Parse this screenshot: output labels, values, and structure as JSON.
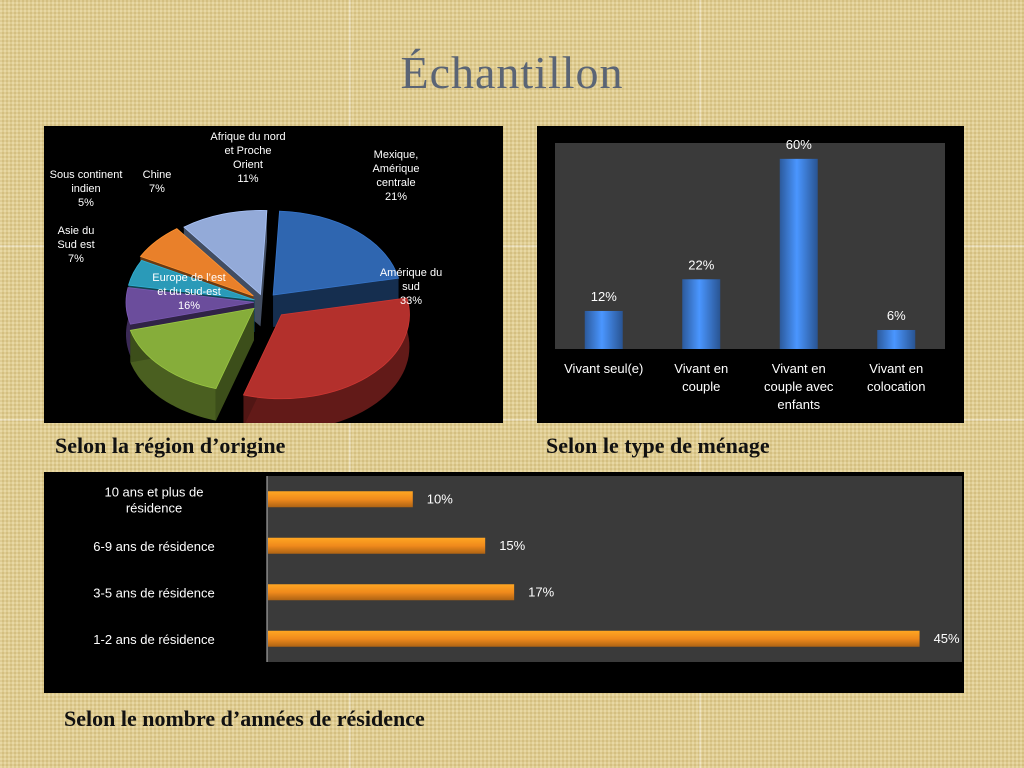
{
  "slide": {
    "title": "Échantillon"
  },
  "captions": {
    "pie": "Selon la région d’origine",
    "column": "Selon le type de ménage",
    "bar": "Selon le nombre d’années de résidence"
  },
  "chart_data": [
    {
      "type": "pie",
      "title": "",
      "legend": "none",
      "slices": [
        {
          "label_lines": [
            "Mexique,",
            "Amérique",
            "centrale"
          ],
          "value_label": "21%",
          "value": 21,
          "color": "#2f66b0"
        },
        {
          "label_lines": [
            "Amérique du",
            "sud"
          ],
          "value_label": "33%",
          "value": 33,
          "color": "#b3302c"
        },
        {
          "label_lines": [
            "Europe de l’est",
            "et du sud-est"
          ],
          "value_label": "16%",
          "value": 16,
          "color": "#86ad3a"
        },
        {
          "label_lines": [
            "Asie du",
            "Sud est"
          ],
          "value_label": "7%",
          "value": 7,
          "color": "#6b4d9c"
        },
        {
          "label_lines": [
            "Sous continent",
            "indien"
          ],
          "value_label": "5%",
          "value": 5,
          "color": "#2a9ab8"
        },
        {
          "label_lines": [
            "Chine"
          ],
          "value_label": "7%",
          "value": 7,
          "color": "#e9802a"
        },
        {
          "label_lines": [
            "Afrique du nord",
            "et Proche",
            "Orient"
          ],
          "value_label": "11%",
          "value": 11,
          "color": "#93aad8"
        }
      ]
    },
    {
      "type": "bar",
      "orientation": "vertical",
      "title": "",
      "categories": [
        {
          "lines": [
            "Vivant seul(e)"
          ]
        },
        {
          "lines": [
            "Vivant en",
            "couple"
          ]
        },
        {
          "lines": [
            "Vivant en",
            "couple avec",
            "enfants"
          ]
        },
        {
          "lines": [
            "Vivant en",
            "colocation"
          ]
        }
      ],
      "values": [
        12,
        22,
        60,
        6
      ],
      "value_labels": [
        "12%",
        "22%",
        "60%",
        "6%"
      ],
      "ylim": [
        0,
        65
      ],
      "color": "#3b78d0",
      "plot_background": "#3a3a3a"
    },
    {
      "type": "bar",
      "orientation": "horizontal",
      "title": "",
      "categories": [
        {
          "lines": [
            "10 ans et plus de",
            "résidence"
          ]
        },
        {
          "lines": [
            "6-9 ans de résidence"
          ]
        },
        {
          "lines": [
            "3-5  ans de résidence"
          ]
        },
        {
          "lines": [
            "1-2 ans de résidence"
          ]
        }
      ],
      "values": [
        10,
        15,
        17,
        45
      ],
      "value_labels": [
        "10%",
        "15%",
        "17%",
        "45%"
      ],
      "xlim": [
        0,
        48
      ],
      "color": "#f08a1c",
      "plot_background": "#3a3a3a"
    }
  ]
}
